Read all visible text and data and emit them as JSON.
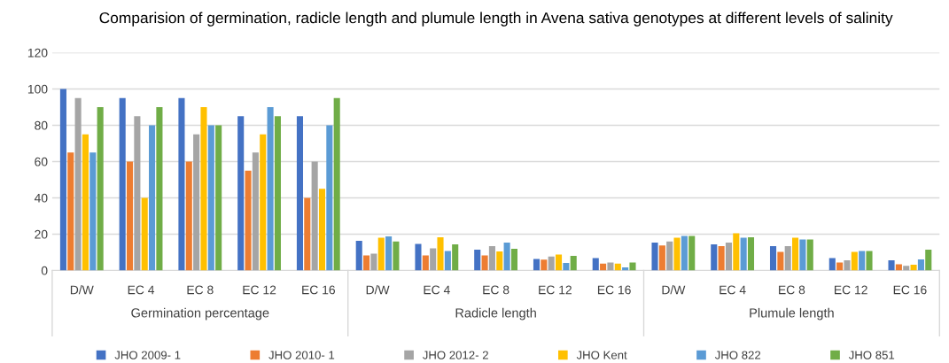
{
  "chart_data": {
    "type": "bar",
    "title": "Comparision of germination, radicle length and plumule length in Avena sativa genotypes at different levels of salinity",
    "categories": [
      "D/W",
      "EC 4",
      "EC 8",
      "EC 12",
      "EC 16",
      "D/W",
      "EC 4",
      "EC 8",
      "EC 12",
      "EC 16",
      "D/W",
      "EC 4",
      "EC 8",
      "EC 12",
      "EC 16"
    ],
    "annotations": [
      "Germination percentage",
      "Radicle length",
      "Plumule length"
    ],
    "series": [
      {
        "name": "JHO 2009- 1",
        "color": "#4472c4",
        "values": [
          100,
          95,
          95,
          85,
          85,
          16.3,
          14.6,
          11.4,
          6.3,
          6.8,
          15.3,
          14.4,
          13.4,
          6.8,
          5.6
        ]
      },
      {
        "name": "JHO 2010- 1",
        "color": "#ed7d31",
        "values": [
          65,
          60,
          60,
          55,
          40,
          8.3,
          8.3,
          8.3,
          5.9,
          3.7,
          13.7,
          13.4,
          10.2,
          4.4,
          3.4
        ]
      },
      {
        "name": "JHO 2012- 2",
        "color": "#a5a5a5",
        "values": [
          95,
          85,
          75,
          65,
          60,
          9.2,
          12.2,
          13.4,
          7.6,
          4.4,
          15.9,
          15.3,
          13.4,
          5.6,
          2.5
        ]
      },
      {
        "name": "JHO Kent",
        "color": "#ffc000",
        "values": [
          75,
          40,
          90,
          75,
          45,
          18,
          18.3,
          10.5,
          8.8,
          3.7,
          18,
          20.5,
          18,
          10.2,
          3.1
        ]
      },
      {
        "name": "JHO 822",
        "color": "#5b9bd5",
        "values": [
          65,
          80,
          80,
          90,
          80,
          18.8,
          10.7,
          15.3,
          4.1,
          1.7,
          19,
          18,
          17.1,
          10.7,
          6.1
        ]
      },
      {
        "name": "JHO 851",
        "color": "#70ad47",
        "values": [
          90,
          90,
          80,
          85,
          95,
          15.9,
          14.4,
          11.9,
          8,
          4.4,
          19,
          18.3,
          17.1,
          10.7,
          11.4
        ]
      }
    ],
    "ylim": [
      0,
      120
    ],
    "yticks": [
      0,
      20,
      40,
      60,
      80,
      100,
      120
    ],
    "grid": "y",
    "legend": "bottom"
  }
}
